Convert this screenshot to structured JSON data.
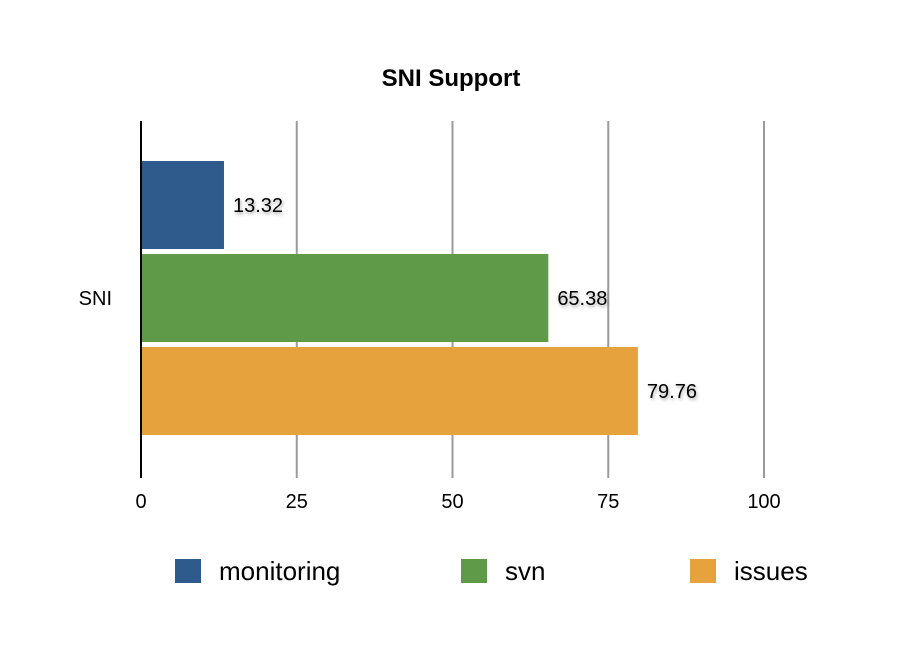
{
  "chart_data": {
    "type": "bar",
    "orientation": "horizontal",
    "title": "SNI Support",
    "categories": [
      "SNI"
    ],
    "series": [
      {
        "name": "monitoring",
        "values": [
          13.32
        ],
        "color": "#2e5a8c"
      },
      {
        "name": "svn",
        "values": [
          65.38
        ],
        "color": "#5f9a49"
      },
      {
        "name": "issues",
        "values": [
          79.76
        ],
        "color": "#e6a23c"
      }
    ],
    "value_labels": [
      "13.32",
      "65.38",
      "79.76"
    ],
    "xlim": [
      0,
      100
    ],
    "x_ticks": [
      "0",
      "25",
      "50",
      "75",
      "100"
    ],
    "xlabel": "",
    "ylabel": "",
    "grid": true,
    "legend": "bottom"
  }
}
